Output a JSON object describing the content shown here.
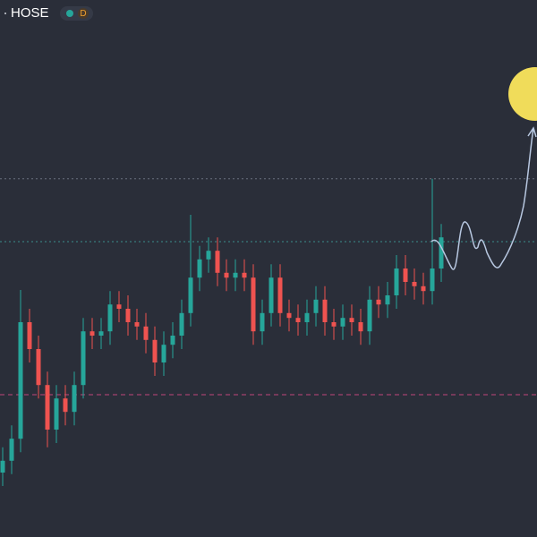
{
  "chart_data": {
    "type": "candlestick",
    "symbol": "HOSE",
    "interval": "D",
    "up_color": "#26a69a",
    "down_color": "#ef5350",
    "ylim": [
      0,
      100
    ],
    "open": [
      12,
      14.2,
      18.3,
      40,
      35,
      28.3,
      20,
      25.8,
      23.3,
      28.3,
      38.3,
      37.5,
      38.3,
      43.3,
      42.5,
      40,
      39.2,
      36.7,
      32.5,
      35.8,
      37.5,
      41.7,
      48.3,
      51.7,
      53.3,
      49.2,
      48.3,
      49.2,
      48.3,
      38.3,
      41.7,
      48.3,
      41.7,
      40.8,
      40,
      41.7,
      44.2,
      40,
      39.2,
      40.8,
      40,
      38.3,
      44.2,
      43.3,
      45,
      50,
      47.5,
      46.7,
      45.8,
      50
    ],
    "high": [
      16.7,
      20.8,
      46,
      42.5,
      37.5,
      30.8,
      28.3,
      28.3,
      30.8,
      40.8,
      40.8,
      40.8,
      45.8,
      45.8,
      45,
      42.5,
      41.7,
      39.2,
      38.3,
      40,
      44.2,
      60,
      54.2,
      55.8,
      55.8,
      51.7,
      51.7,
      51.7,
      50.8,
      44.2,
      50.8,
      50.8,
      44.2,
      43.3,
      44.2,
      46.7,
      46.7,
      42.5,
      43.3,
      43.3,
      42.5,
      46.7,
      46.7,
      47.5,
      52.5,
      52.5,
      50,
      49.2,
      66.7,
      58.3
    ],
    "low": [
      9.5,
      11.7,
      15.8,
      32.5,
      25.8,
      16.7,
      17.5,
      20.8,
      20.8,
      25.8,
      35,
      35,
      35.8,
      40,
      37.5,
      36.7,
      34.2,
      30,
      30,
      33.3,
      35,
      39.2,
      45.8,
      49.2,
      46.7,
      45.8,
      45.8,
      45.8,
      35.8,
      35.8,
      39.2,
      39.2,
      38.3,
      37.5,
      37.5,
      39.2,
      37.5,
      36.7,
      36.7,
      37.5,
      35.8,
      35.8,
      40.8,
      40.8,
      42.5,
      45,
      44.2,
      43.3,
      43.3,
      47.5
    ],
    "close": [
      14.2,
      18.3,
      40,
      35,
      28.3,
      20,
      25.8,
      23.3,
      28.3,
      38.3,
      37.5,
      38.3,
      43.3,
      42.5,
      40,
      39.2,
      36.7,
      32.5,
      35.8,
      37.5,
      41.7,
      48.3,
      51.7,
      53.3,
      49.2,
      48.3,
      49.2,
      48.3,
      38.3,
      41.7,
      48.3,
      41.7,
      40.8,
      40,
      41.7,
      44.2,
      40,
      39.2,
      40.8,
      40,
      38.3,
      44.2,
      43.3,
      45,
      50,
      47.5,
      46.7,
      45.8,
      50,
      55.8
    ],
    "levels": [
      {
        "value": 66.7,
        "color": "#6b7080",
        "dash": "2,3"
      },
      {
        "value": 55,
        "color": "#3a8f8a",
        "dash": "2,3"
      },
      {
        "value": 26.5,
        "color": "#c0457a",
        "dash": "5,4"
      }
    ]
  }
}
